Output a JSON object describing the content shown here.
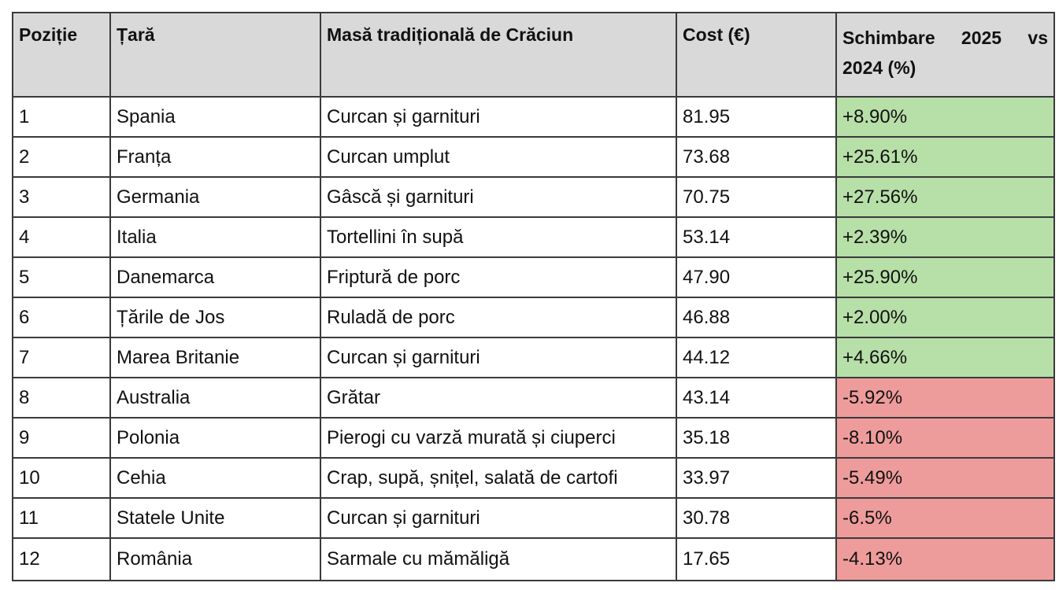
{
  "table": {
    "header": [
      "Poziție",
      "Țară",
      "Masă tradițională de Crăciun",
      "Cost (€)",
      "Schimbare 2025 vs 2024 (%)"
    ],
    "rows": [
      [
        "1",
        "Spania",
        "Curcan și garnituri",
        "81.95",
        "+8.90%"
      ],
      [
        "2",
        "Franța",
        "Curcan umplut",
        "73.68",
        "+25.61%"
      ],
      [
        "3",
        "Germania",
        "Gâscă și garnituri",
        "70.75",
        "+27.56%"
      ],
      [
        "4",
        "Italia",
        "Tortellini în supă",
        "53.14",
        "+2.39%"
      ],
      [
        "5",
        "Danemarca",
        "Friptură de porc",
        "47.90",
        "+25.90%"
      ],
      [
        "6",
        "Țările de Jos",
        "Ruladă de porc",
        "46.88",
        "+2.00%"
      ],
      [
        "7",
        "Marea Britanie",
        "Curcan și garnituri",
        "44.12",
        "+4.66%"
      ],
      [
        "8",
        "Australia",
        "Grătar",
        "43.14",
        "-5.92%"
      ],
      [
        "9",
        "Polonia",
        "Pierogi cu varză murată și ciuperci",
        "35.18",
        "-8.10%"
      ],
      [
        "10",
        "Cehia",
        "Crap, supă, șnițel, salată de cartofi",
        "33.97",
        "-5.49%"
      ],
      [
        "11",
        "Statele Unite",
        "Curcan și garnituri",
        "30.78",
        "-6.5%"
      ],
      [
        "12",
        "România",
        "Sarmale cu mămăligă",
        "17.65",
        "-4.13%"
      ]
    ]
  }
}
